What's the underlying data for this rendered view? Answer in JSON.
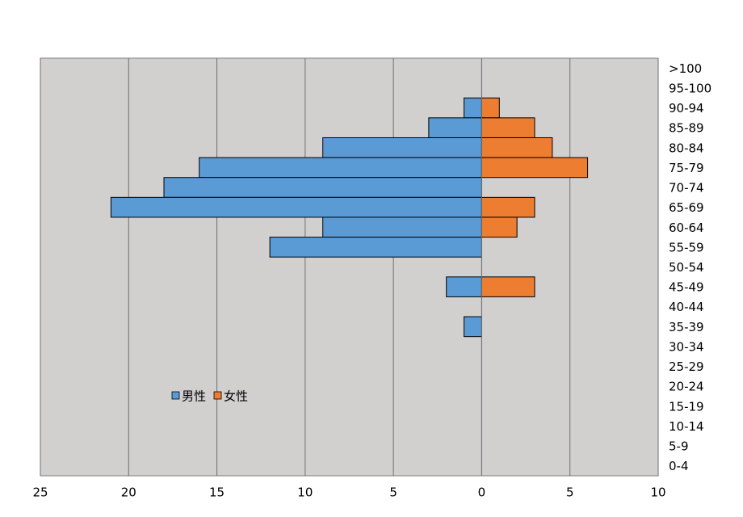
{
  "chart_data": {
    "type": "bar",
    "orientation": "horizontal",
    "stacked": false,
    "categories": [
      ">100",
      "95-100",
      "90-94",
      "85-89",
      "80-84",
      "75-79",
      "70-74",
      "65-69",
      "60-64",
      "55-59",
      "50-54",
      "45-49",
      "40-44",
      "35-39",
      "30-34",
      "25-29",
      "20-24",
      "15-19",
      "10-14",
      "5-9",
      "0-4"
    ],
    "series": [
      {
        "name": "男性",
        "color": "#5b9bd5",
        "values": [
          0,
          0,
          -1,
          -3,
          -9,
          -16,
          -18,
          -21,
          -9,
          -12,
          0,
          -2,
          0,
          -1,
          0,
          0,
          0,
          0,
          0,
          0,
          0
        ]
      },
      {
        "name": "女性",
        "color": "#ed7d31",
        "values": [
          0,
          0,
          1,
          3,
          4,
          6,
          0,
          3,
          2,
          0,
          0,
          3,
          0,
          0,
          0,
          0,
          0,
          0,
          0,
          0,
          0
        ]
      }
    ],
    "xlim": [
      -25,
      10
    ],
    "xticks": [
      {
        "value": -25,
        "label": "25"
      },
      {
        "value": -20,
        "label": "20"
      },
      {
        "value": -15,
        "label": "15"
      },
      {
        "value": -10,
        "label": "10"
      },
      {
        "value": -5,
        "label": "5"
      },
      0,
      5,
      10
    ],
    "grid": true,
    "legend": "lower left"
  }
}
